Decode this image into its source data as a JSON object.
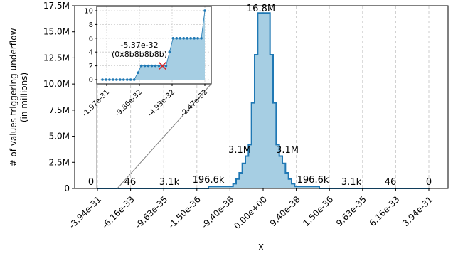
{
  "chart_data": {
    "type": "area",
    "title": "",
    "xlabel": "X",
    "ylabel": "# of values triggering underflow",
    "ylabel_sub": "(in millions)",
    "grid": "vertical dashed",
    "ylim": [
      0,
      17.5
    ],
    "y_ticks": [
      {
        "v": 0,
        "label": "0"
      },
      {
        "v": 2.5,
        "label": "2.5M"
      },
      {
        "v": 5,
        "label": "5.0M"
      },
      {
        "v": 7.5,
        "label": "7.5M"
      },
      {
        "v": 10,
        "label": "10.0M"
      },
      {
        "v": 12.5,
        "label": "12.5M"
      },
      {
        "v": 15,
        "label": "15.0M"
      },
      {
        "v": 17.5,
        "label": "17.5M"
      }
    ],
    "x_tick_labels": [
      "-3.94e-31",
      "-6.16e-33",
      "-9.63e-35",
      "-1.50e-36",
      "-9.40e-38",
      "0.00e+00",
      "9.40e-38",
      "1.50e-36",
      "9.63e-35",
      "6.16e-33",
      "3.94e-31"
    ],
    "series": [
      {
        "values": [
          0,
          0,
          0,
          0,
          0,
          0,
          0,
          0,
          0,
          0,
          0,
          0,
          0,
          0,
          0,
          0,
          0,
          0,
          0.003,
          0.003,
          0.003,
          0.003,
          0.003,
          0.003,
          0.003,
          0.003,
          0.003,
          0.003,
          0.003,
          0.003,
          0.003,
          0.003,
          0.003,
          0.003,
          0.003,
          0.003,
          0.197,
          0.197,
          0.197,
          0.197,
          0.197,
          0.197,
          0.197,
          0.197,
          0.45,
          0.9,
          1.5,
          2.4,
          3.1,
          4.2,
          8.2,
          12.8,
          16.8,
          16.8,
          16.8,
          16.8,
          12.8,
          8.2,
          4.2,
          3.1,
          2.4,
          1.5,
          0.9,
          0.45,
          0.197,
          0.197,
          0.197,
          0.197,
          0.197,
          0.197,
          0.197,
          0.197,
          0.003,
          0.003,
          0.003,
          0.003,
          0.003,
          0.003,
          0.003,
          0.003,
          0.003,
          0.003,
          0.003,
          0.003,
          0.003,
          0.003,
          0.003,
          0.003,
          0.003,
          0.003,
          0,
          0,
          0,
          0,
          0,
          0,
          0,
          0,
          0,
          0,
          0,
          0,
          0,
          0,
          0,
          0,
          0,
          0
        ]
      }
    ],
    "annotations": [
      "0",
      "46",
      "3.1k",
      "196.6k",
      "3.1M",
      "16.8M",
      "3.1M",
      "196.6k",
      "3.1k",
      "46",
      "0"
    ],
    "inset": {
      "type": "area",
      "ylim": [
        0,
        10
      ],
      "y_ticks": [
        "0",
        "2",
        "4",
        "6",
        "8",
        "10"
      ],
      "x_tick_labels": [
        "-1.97e-31",
        "-9.86e-32",
        "-4.93e-32",
        "-2.47e-32"
      ],
      "values": [
        0,
        0,
        0,
        0,
        0,
        0,
        0,
        0,
        0,
        0,
        1,
        2,
        2,
        2,
        2,
        2,
        2,
        2,
        2,
        4,
        6,
        6,
        6,
        6,
        6,
        6,
        6,
        6,
        6,
        10
      ],
      "marked_point_label": "-5.37e-32",
      "marked_point_sublabel": "(0x8b8b8b8b)",
      "marked_point_value": 2
    },
    "colors": {
      "fill": "#a6cee3",
      "line": "#1f78b4",
      "marker": "#d62728",
      "grid": "#cccccc"
    }
  }
}
